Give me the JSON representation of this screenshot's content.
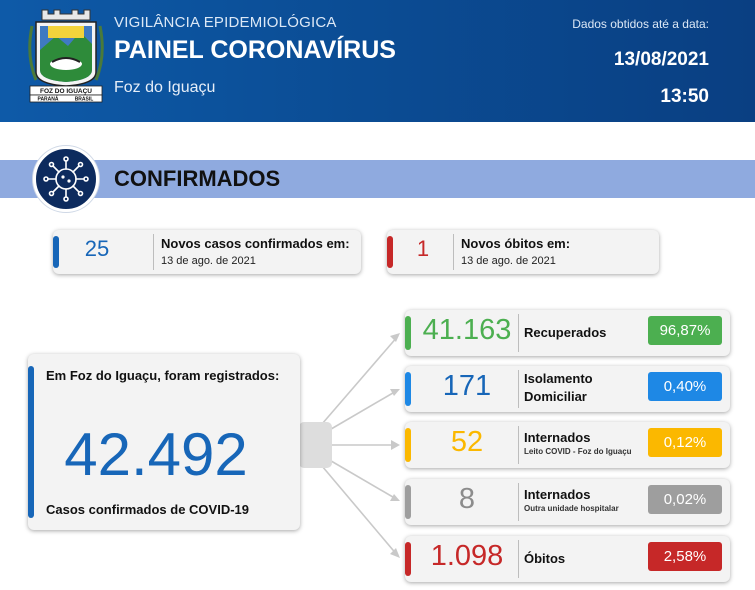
{
  "header": {
    "subtitle": "VIGILÂNCIA EPIDEMIOLÓGICA",
    "title": "PAINEL CORONAVÍRUS",
    "city": "Foz do Iguaçu",
    "date_note": "Dados obtidos até a data:",
    "date": "13/08/2021",
    "time": "13:50",
    "crest": {
      "banner": "FOZ DO IGUAÇU",
      "state": "PARANÁ",
      "country": "BRASIL"
    }
  },
  "section": {
    "title": "CONFIRMADOS",
    "icon": "virus-icon"
  },
  "new_cases": {
    "value": "25",
    "label": "Novos casos confirmados em:",
    "date": "13 de ago. de 2021",
    "color": "#1766b8"
  },
  "new_deaths": {
    "value": "1",
    "label": "Novos óbitos em:",
    "date": "13 de ago. de 2021",
    "color": "#c62828"
  },
  "total": {
    "intro": "Em Foz do Iguaçu, foram registrados:",
    "value": "42.492",
    "caption": "Casos confirmados de COVID-19",
    "color": "#1766b8"
  },
  "outcomes": [
    {
      "value": "41.163",
      "label": "Recuperados",
      "sublabel": "",
      "pct": "96,87%",
      "color": "#4caf50"
    },
    {
      "value": "171",
      "label": "Isolamento Domiciliar",
      "sublabel": "",
      "pct": "0,40%",
      "color": "#1e88e5"
    },
    {
      "value": "52",
      "label": "Internados",
      "sublabel": "Leito COVID - Foz do Iguaçu",
      "pct": "0,12%",
      "color": "#fbb800"
    },
    {
      "value": "8",
      "label": "Internados",
      "sublabel": "Outra unidade hospitalar",
      "pct": "0,02%",
      "color": "#9e9e9e"
    },
    {
      "value": "1.098",
      "label": "Óbitos",
      "sublabel": "",
      "pct": "2,58%",
      "color": "#c62828"
    }
  ]
}
